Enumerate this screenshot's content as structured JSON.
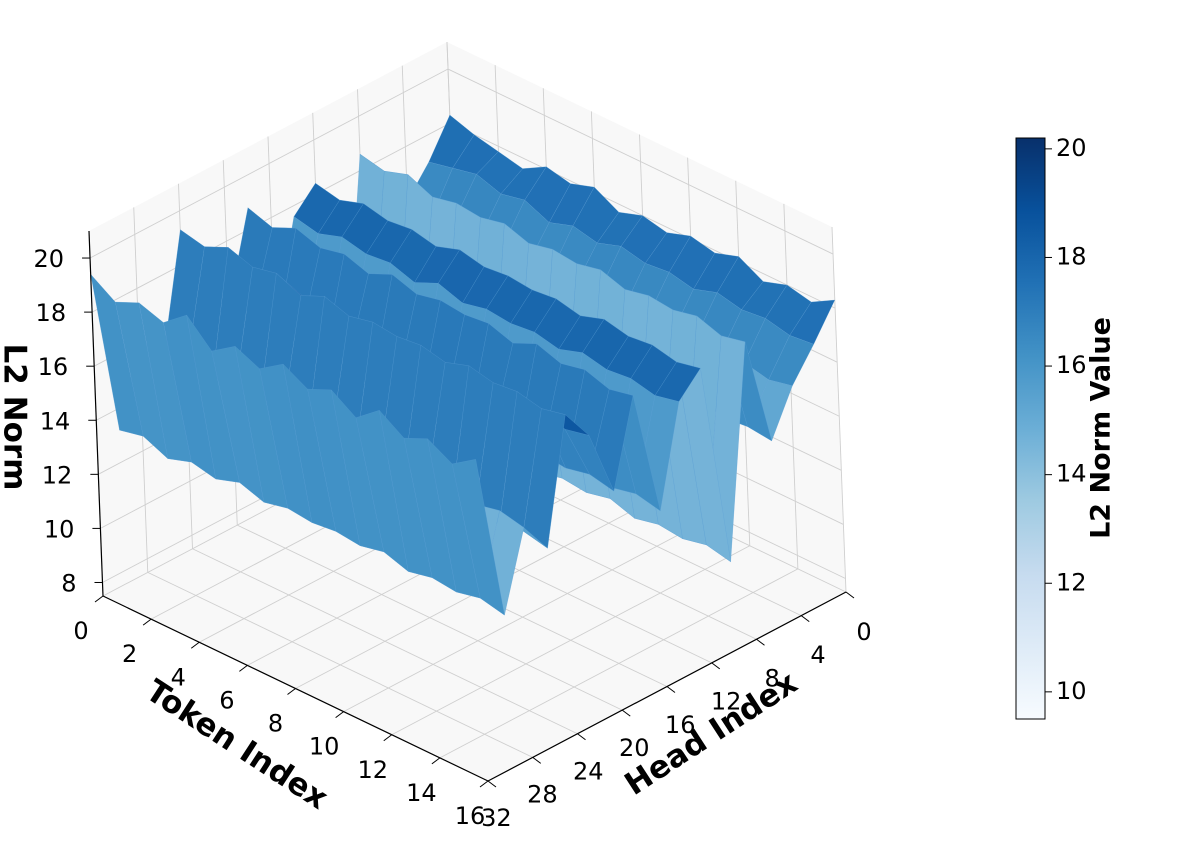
{
  "chart_data": {
    "type": "surface3d",
    "xlabel": "Token Index",
    "ylabel": "Head Index",
    "zlabel": "L2 Norm",
    "colorbar_label": "L2 Norm Value",
    "colormap": "Blues",
    "colormap_stops": [
      "#f7fbff",
      "#deebf7",
      "#c6dbef",
      "#9ecae1",
      "#6baed6",
      "#4292c6",
      "#2171b5",
      "#08519c",
      "#08306b"
    ],
    "xlim": [
      0,
      16
    ],
    "ylim": [
      0,
      32
    ],
    "zlim": [
      7.5,
      21
    ],
    "vmin": 9.5,
    "vmax": 20.2,
    "x_ticks": [
      0,
      2,
      4,
      6,
      8,
      10,
      12,
      14,
      16
    ],
    "x_tick_labels": [
      "0",
      "2",
      "4",
      "6",
      "8",
      "10",
      "12",
      "14",
      "16"
    ],
    "y_ticks": [
      0,
      4,
      8,
      12,
      16,
      20,
      24,
      28,
      32
    ],
    "y_tick_labels": [
      "0",
      "4",
      "8",
      "12",
      "16",
      "20",
      "24",
      "28",
      "32"
    ],
    "z_ticks": [
      8,
      10,
      12,
      14,
      16,
      18,
      20
    ],
    "z_tick_labels": [
      "8",
      "10",
      "12",
      "14",
      "16",
      "18",
      "20"
    ],
    "colorbar_ticks": [
      10,
      12,
      14,
      16,
      18,
      20
    ],
    "colorbar_tick_labels": [
      "10",
      "12",
      "14",
      "16",
      "18",
      "20"
    ],
    "grid": true,
    "tokens": [
      0,
      1,
      2,
      3,
      4,
      5,
      6,
      7,
      8,
      9,
      10,
      11,
      12,
      13,
      14,
      15,
      16
    ],
    "heads": [
      0,
      2,
      4,
      6,
      8,
      10,
      12,
      14,
      16,
      18,
      20,
      22,
      24,
      26,
      28,
      30,
      32
    ],
    "z": [
      [
        18.3,
        17.0,
        16.0,
        14.5,
        18.6,
        10.8,
        18.4,
        17.6,
        14.0,
        18.8,
        15.6,
        18.1,
        19.3,
        14.8,
        16.0,
        13.2,
        19.4
      ],
      [
        18.0,
        17.2,
        15.8,
        14.8,
        18.4,
        11.0,
        18.2,
        17.4,
        14.3,
        18.5,
        15.8,
        18.0,
        19.1,
        15.0,
        16.2,
        13.4,
        18.8
      ],
      [
        17.8,
        17.4,
        16.2,
        14.2,
        18.7,
        10.6,
        18.5,
        17.7,
        13.8,
        18.9,
        15.4,
        18.3,
        19.5,
        14.6,
        15.8,
        13.0,
        19.2
      ],
      [
        17.6,
        17.1,
        15.9,
        14.6,
        18.3,
        10.9,
        18.3,
        17.5,
        14.1,
        18.6,
        15.7,
        18.0,
        19.2,
        14.9,
        16.1,
        13.3,
        18.9
      ],
      [
        18.1,
        17.3,
        16.1,
        14.4,
        18.5,
        10.7,
        18.4,
        17.6,
        13.9,
        18.8,
        15.5,
        18.2,
        19.4,
        14.7,
        15.9,
        13.1,
        19.6
      ],
      [
        17.9,
        16.9,
        15.8,
        14.7,
        18.4,
        11.0,
        18.2,
        17.3,
        14.2,
        18.5,
        15.8,
        17.9,
        19.0,
        15.0,
        16.2,
        13.4,
        18.7
      ],
      [
        18.2,
        17.2,
        16.0,
        14.3,
        18.6,
        10.8,
        18.5,
        17.7,
        13.9,
        18.9,
        15.5,
        18.2,
        19.4,
        14.7,
        15.9,
        13.1,
        19.3
      ],
      [
        17.7,
        17.0,
        15.9,
        14.6,
        18.3,
        10.9,
        18.3,
        17.4,
        14.1,
        18.6,
        15.7,
        18.0,
        19.1,
        14.9,
        16.1,
        13.3,
        18.9
      ],
      [
        18.0,
        17.3,
        16.1,
        14.4,
        18.5,
        10.7,
        18.4,
        17.6,
        14.0,
        18.8,
        15.6,
        18.1,
        19.3,
        14.8,
        16.0,
        13.2,
        19.5
      ],
      [
        17.8,
        17.1,
        15.9,
        14.5,
        18.4,
        10.9,
        18.3,
        17.5,
        14.1,
        18.7,
        15.7,
        18.0,
        19.2,
        14.9,
        16.1,
        13.3,
        19.0
      ],
      [
        18.1,
        17.2,
        16.0,
        14.4,
        18.6,
        10.8,
        18.4,
        17.6,
        14.0,
        18.8,
        15.6,
        18.1,
        19.3,
        14.8,
        16.0,
        13.2,
        19.4
      ],
      [
        17.9,
        17.0,
        15.8,
        14.6,
        18.3,
        11.0,
        18.2,
        17.4,
        14.2,
        18.5,
        15.8,
        17.9,
        19.1,
        15.0,
        16.2,
        13.4,
        18.8
      ],
      [
        18.2,
        17.3,
        16.1,
        14.3,
        18.5,
        10.7,
        18.5,
        17.7,
        13.9,
        18.9,
        15.5,
        18.2,
        19.4,
        14.7,
        15.9,
        13.1,
        19.5
      ],
      [
        17.7,
        17.1,
        15.9,
        14.7,
        18.4,
        10.9,
        18.3,
        17.5,
        14.1,
        18.6,
        15.7,
        18.0,
        19.2,
        14.9,
        16.1,
        13.3,
        18.9
      ],
      [
        18.0,
        17.2,
        16.0,
        14.4,
        18.6,
        10.8,
        18.4,
        17.6,
        14.0,
        18.8,
        15.6,
        18.1,
        19.3,
        14.8,
        16.0,
        13.2,
        19.3
      ],
      [
        17.8,
        17.0,
        15.8,
        14.5,
        18.3,
        11.0,
        18.2,
        17.4,
        14.2,
        18.5,
        15.8,
        17.9,
        19.1,
        15.0,
        16.2,
        13.4,
        18.8
      ],
      [
        18.3,
        17.1,
        16.0,
        14.4,
        18.5,
        10.8,
        18.4,
        17.6,
        14.0,
        18.7,
        15.6,
        18.1,
        19.3,
        14.8,
        16.0,
        13.2,
        19.4
      ]
    ]
  }
}
